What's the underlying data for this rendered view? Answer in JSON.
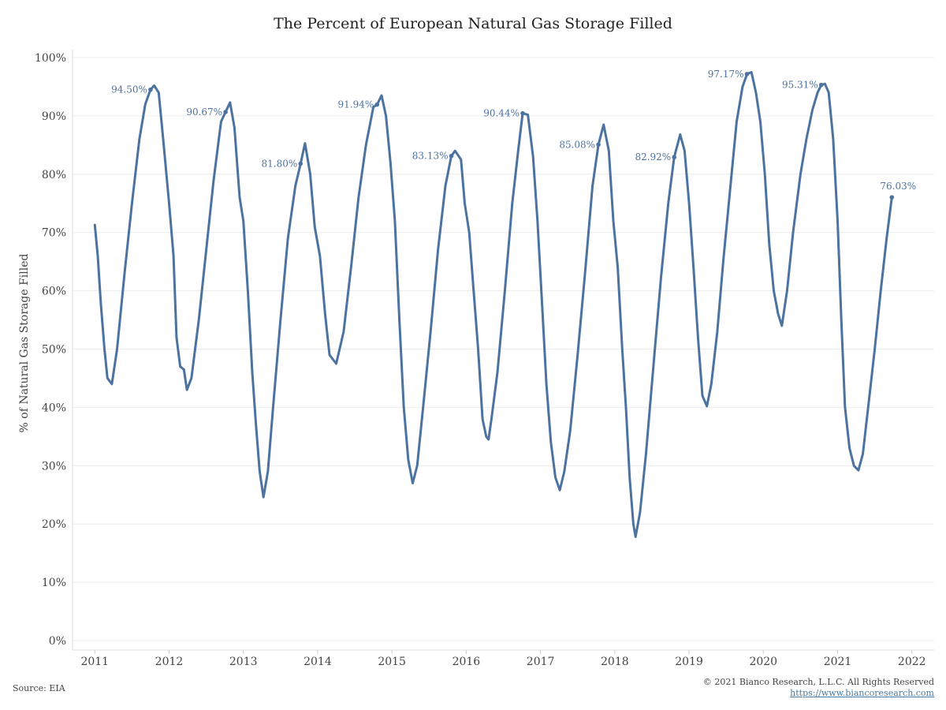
{
  "chart_data": {
    "type": "line",
    "title": "The Percent of European Natural Gas Storage Filled",
    "xlabel": "",
    "ylabel": "% of Natural Gas Storage Filled",
    "xlim": [
      2010.7,
      2022.3
    ],
    "ylim": [
      0,
      100
    ],
    "x_ticks": [
      2011,
      2012,
      2013,
      2014,
      2015,
      2016,
      2017,
      2018,
      2019,
      2020,
      2021,
      2022
    ],
    "y_ticks": [
      0,
      10,
      20,
      30,
      40,
      50,
      60,
      70,
      80,
      90,
      100
    ],
    "y_tick_labels": [
      "0%",
      "10%",
      "20%",
      "30%",
      "40%",
      "50%",
      "60%",
      "70%",
      "80%",
      "90%",
      "100%"
    ],
    "grid": true,
    "series": [
      {
        "color": "#4c72a0",
        "points": [
          [
            2011.0,
            71.3
          ],
          [
            2011.04,
            66.0
          ],
          [
            2011.08,
            58.0
          ],
          [
            2011.13,
            50.0
          ],
          [
            2011.17,
            45.0
          ],
          [
            2011.23,
            44.0
          ],
          [
            2011.3,
            50.0
          ],
          [
            2011.4,
            63.0
          ],
          [
            2011.5,
            75.0
          ],
          [
            2011.6,
            86.0
          ],
          [
            2011.68,
            92.0
          ],
          [
            2011.75,
            94.5
          ],
          [
            2011.8,
            95.2
          ],
          [
            2011.86,
            94.0
          ],
          [
            2011.92,
            86.0
          ],
          [
            2012.0,
            75.0
          ],
          [
            2012.06,
            66.0
          ],
          [
            2012.1,
            52.0
          ],
          [
            2012.15,
            47.0
          ],
          [
            2012.2,
            46.5
          ],
          [
            2012.24,
            43.0
          ],
          [
            2012.3,
            45.0
          ],
          [
            2012.4,
            55.0
          ],
          [
            2012.5,
            67.0
          ],
          [
            2012.6,
            79.0
          ],
          [
            2012.7,
            89.0
          ],
          [
            2012.76,
            90.67
          ],
          [
            2012.82,
            92.3
          ],
          [
            2012.88,
            88.0
          ],
          [
            2012.95,
            76.0
          ],
          [
            2013.0,
            72.0
          ],
          [
            2013.06,
            60.0
          ],
          [
            2013.12,
            46.0
          ],
          [
            2013.17,
            37.0
          ],
          [
            2013.22,
            29.0
          ],
          [
            2013.27,
            24.6
          ],
          [
            2013.33,
            29.0
          ],
          [
            2013.4,
            40.0
          ],
          [
            2013.5,
            55.0
          ],
          [
            2013.6,
            69.0
          ],
          [
            2013.7,
            78.0
          ],
          [
            2013.77,
            81.8
          ],
          [
            2013.83,
            85.3
          ],
          [
            2013.9,
            80.0
          ],
          [
            2013.96,
            71.0
          ],
          [
            2014.03,
            66.0
          ],
          [
            2014.1,
            56.0
          ],
          [
            2014.16,
            49.0
          ],
          [
            2014.25,
            47.5
          ],
          [
            2014.35,
            53.0
          ],
          [
            2014.45,
            64.0
          ],
          [
            2014.55,
            76.0
          ],
          [
            2014.65,
            85.0
          ],
          [
            2014.75,
            91.5
          ],
          [
            2014.8,
            91.94
          ],
          [
            2014.86,
            93.5
          ],
          [
            2014.92,
            90.0
          ],
          [
            2014.98,
            82.0
          ],
          [
            2015.04,
            72.0
          ],
          [
            2015.1,
            55.0
          ],
          [
            2015.16,
            40.0
          ],
          [
            2015.22,
            31.0
          ],
          [
            2015.28,
            27.0
          ],
          [
            2015.34,
            30.0
          ],
          [
            2015.42,
            40.0
          ],
          [
            2015.52,
            53.0
          ],
          [
            2015.62,
            67.0
          ],
          [
            2015.72,
            78.0
          ],
          [
            2015.8,
            83.13
          ],
          [
            2015.85,
            84.0
          ],
          [
            2015.93,
            82.5
          ],
          [
            2015.98,
            75.0
          ],
          [
            2016.04,
            70.0
          ],
          [
            2016.1,
            60.0
          ],
          [
            2016.16,
            50.0
          ],
          [
            2016.22,
            38.0
          ],
          [
            2016.27,
            35.0
          ],
          [
            2016.3,
            34.5
          ],
          [
            2016.34,
            38.0
          ],
          [
            2016.42,
            46.0
          ],
          [
            2016.52,
            60.0
          ],
          [
            2016.62,
            75.0
          ],
          [
            2016.7,
            84.0
          ],
          [
            2016.76,
            90.44
          ],
          [
            2016.83,
            90.2
          ],
          [
            2016.9,
            83.0
          ],
          [
            2016.96,
            72.0
          ],
          [
            2017.02,
            58.0
          ],
          [
            2017.08,
            44.0
          ],
          [
            2017.14,
            34.0
          ],
          [
            2017.2,
            28.0
          ],
          [
            2017.26,
            25.8
          ],
          [
            2017.32,
            29.0
          ],
          [
            2017.4,
            36.0
          ],
          [
            2017.5,
            49.0
          ],
          [
            2017.6,
            63.0
          ],
          [
            2017.7,
            78.0
          ],
          [
            2017.78,
            85.08
          ],
          [
            2017.85,
            88.5
          ],
          [
            2017.92,
            84.0
          ],
          [
            2017.98,
            72.0
          ],
          [
            2018.04,
            64.0
          ],
          [
            2018.1,
            50.0
          ],
          [
            2018.15,
            40.0
          ],
          [
            2018.2,
            28.0
          ],
          [
            2018.25,
            20.0
          ],
          [
            2018.28,
            17.8
          ],
          [
            2018.34,
            22.0
          ],
          [
            2018.42,
            32.0
          ],
          [
            2018.52,
            47.0
          ],
          [
            2018.62,
            62.0
          ],
          [
            2018.72,
            75.0
          ],
          [
            2018.8,
            82.92
          ],
          [
            2018.88,
            86.8
          ],
          [
            2018.94,
            84.0
          ],
          [
            2019.0,
            75.0
          ],
          [
            2019.06,
            64.0
          ],
          [
            2019.12,
            52.0
          ],
          [
            2019.18,
            42.0
          ],
          [
            2019.24,
            40.2
          ],
          [
            2019.3,
            44.0
          ],
          [
            2019.38,
            53.0
          ],
          [
            2019.46,
            65.0
          ],
          [
            2019.55,
            77.0
          ],
          [
            2019.64,
            89.0
          ],
          [
            2019.72,
            95.0
          ],
          [
            2019.78,
            97.17
          ],
          [
            2019.84,
            97.5
          ],
          [
            2019.9,
            94.0
          ],
          [
            2019.96,
            89.0
          ],
          [
            2020.02,
            80.0
          ],
          [
            2020.08,
            68.0
          ],
          [
            2020.14,
            60.0
          ],
          [
            2020.2,
            56.0
          ],
          [
            2020.25,
            54.0
          ],
          [
            2020.32,
            60.0
          ],
          [
            2020.4,
            70.0
          ],
          [
            2020.5,
            80.0
          ],
          [
            2020.58,
            86.0
          ],
          [
            2020.66,
            91.0
          ],
          [
            2020.73,
            94.0
          ],
          [
            2020.78,
            95.31
          ],
          [
            2020.83,
            95.5
          ],
          [
            2020.88,
            94.0
          ],
          [
            2020.94,
            86.0
          ],
          [
            2021.0,
            72.0
          ],
          [
            2021.05,
            55.0
          ],
          [
            2021.1,
            40.0
          ],
          [
            2021.16,
            33.0
          ],
          [
            2021.22,
            30.0
          ],
          [
            2021.28,
            29.2
          ],
          [
            2021.34,
            32.0
          ],
          [
            2021.42,
            41.0
          ],
          [
            2021.5,
            50.0
          ],
          [
            2021.58,
            60.0
          ],
          [
            2021.66,
            69.0
          ],
          [
            2021.73,
            76.03
          ]
        ]
      }
    ],
    "annotations": [
      {
        "x": 2011.75,
        "y": 94.5,
        "text": "94.50%",
        "anchor": "end"
      },
      {
        "x": 2012.76,
        "y": 90.67,
        "text": "90.67%",
        "anchor": "end"
      },
      {
        "x": 2013.77,
        "y": 81.8,
        "text": "81.80%",
        "anchor": "end"
      },
      {
        "x": 2014.8,
        "y": 91.94,
        "text": "91.94%",
        "anchor": "end"
      },
      {
        "x": 2015.8,
        "y": 83.13,
        "text": "83.13%",
        "anchor": "end"
      },
      {
        "x": 2016.76,
        "y": 90.44,
        "text": "90.44%",
        "anchor": "end"
      },
      {
        "x": 2017.78,
        "y": 85.08,
        "text": "85.08%",
        "anchor": "end"
      },
      {
        "x": 2018.8,
        "y": 82.92,
        "text": "82.92%",
        "anchor": "end"
      },
      {
        "x": 2019.78,
        "y": 97.17,
        "text": "97.17%",
        "anchor": "end"
      },
      {
        "x": 2020.78,
        "y": 95.31,
        "text": "95.31%",
        "anchor": "end"
      },
      {
        "x": 2021.73,
        "y": 76.03,
        "text": "76.03%",
        "anchor": "end-above"
      }
    ]
  },
  "footer": {
    "source": "Source: EIA",
    "copyright": "© 2021 Bianco Research, L.L.C. All Rights Reserved",
    "website": "https://www.biancoresearch.com"
  },
  "colors": {
    "line": "#4c72a0",
    "annotation": "#4c72a0",
    "grid": "#ececec",
    "link": "#4a7aa0"
  }
}
